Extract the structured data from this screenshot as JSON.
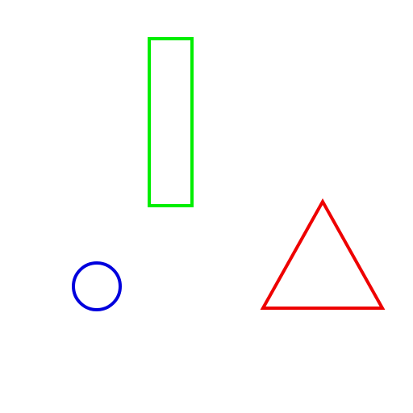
{
  "canvas": {
    "background": "#ffffff"
  },
  "shapes": [
    {
      "type": "rectangle",
      "name": "green-rectangle-outline",
      "color": "#00ee00",
      "filled": false
    },
    {
      "type": "circle",
      "name": "blue-circle-outline",
      "color": "#0000dd",
      "filled": false
    },
    {
      "type": "triangle",
      "name": "red-triangle-outline",
      "color": "#ee0000",
      "filled": false
    }
  ]
}
